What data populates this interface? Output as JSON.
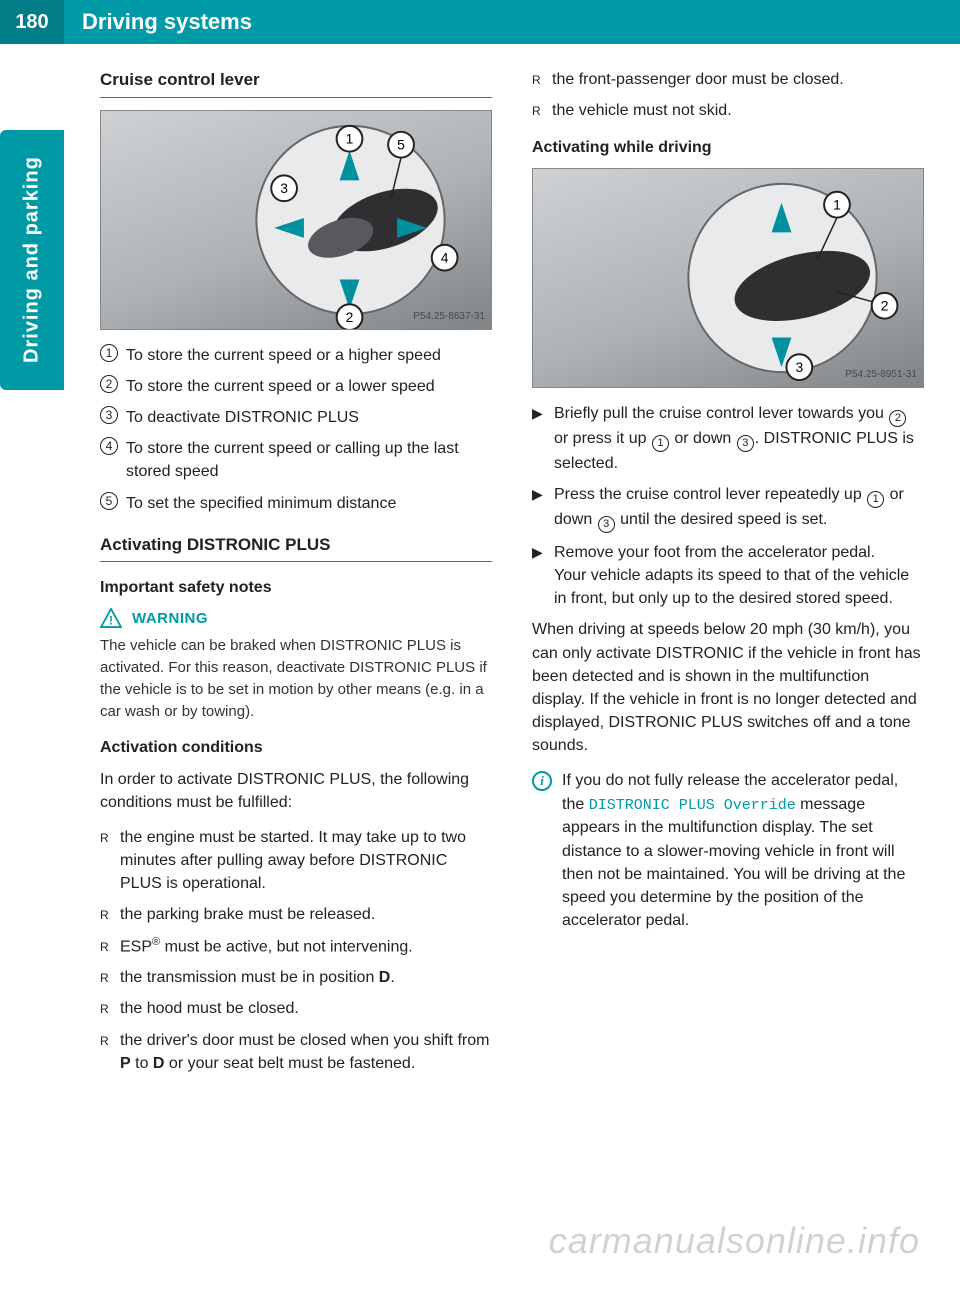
{
  "page": {
    "number": "180",
    "header_title": "Driving systems",
    "side_tab": "Driving and parking"
  },
  "colors": {
    "brand": "#009aa6",
    "brand_dark": "#007d87",
    "text": "#222222",
    "warn_text": "#333333"
  },
  "left": {
    "section1_title": "Cruise control lever",
    "fig1_id": "P54.25-8637-31",
    "callouts": [
      {
        "num": "1",
        "text": "To store the current speed or a higher speed"
      },
      {
        "num": "2",
        "text": "To store the current speed or a lower speed"
      },
      {
        "num": "3",
        "text": "To deactivate DISTRONIC PLUS"
      },
      {
        "num": "4",
        "text": "To store the current speed or calling up the last stored speed"
      },
      {
        "num": "5",
        "text": "To set the specified minimum distance"
      }
    ],
    "section2_title": "Activating DISTRONIC PLUS",
    "sub_important": "Important safety notes",
    "warning_label": "WARNING",
    "warning_text": "The vehicle can be braked when DISTRONIC PLUS is activated. For this reason, deactivate DISTRONIC PLUS if the vehicle is to be set in motion by other means (e.g. in a car wash or by towing).",
    "sub_conditions": "Activation conditions",
    "conditions_intro": "In order to activate DISTRONIC PLUS, the following conditions must be fulfilled:",
    "conditions": [
      "the engine must be started. It may take up to two minutes after pulling away before DISTRONIC PLUS is operational.",
      "the parking brake must be released.",
      "ESP® must be active, but not intervening.",
      "the transmission must be in position D.",
      "the hood must be closed.",
      "the driver's door must be closed when you shift from P to D or your seat belt must be fastened."
    ]
  },
  "right": {
    "conditions_cont": [
      "the front-passenger door must be closed.",
      "the vehicle must not skid."
    ],
    "sub_activating": "Activating while driving",
    "fig2_id": "P54.25-8951-31",
    "proc1_pre": "Briefly pull the cruise control lever towards you ",
    "proc1_mid1": " or press it up ",
    "proc1_mid2": " or down ",
    "proc1_post": ". DISTRONIC PLUS is selected.",
    "proc2_pre": "Press the cruise control lever repeatedly up ",
    "proc2_mid": " or down ",
    "proc2_post": " until the desired speed is set.",
    "proc3": "Remove your foot from the accelerator pedal.",
    "proc3_cont": "Your vehicle adapts its speed to that of the vehicle in front, but only up to the desired stored speed.",
    "para_speed": "When driving at speeds below 20 mph (30 km/h), you can only activate DISTRONIC if the vehicle in front has been detected and is shown in the multifunction display. If the vehicle in front is no longer detected and displayed, DISTRONIC PLUS switches off and a tone sounds.",
    "info_pre": "If you do not fully release the accelerator pedal, the ",
    "info_msg": "DISTRONIC PLUS Override",
    "info_post": " message appears in the multifunction display. The set distance to a slower-moving vehicle in front will then not be maintained. You will be driving at the speed you determine by the position of the accelerator pedal."
  },
  "watermark": "carmanualsonline.info"
}
